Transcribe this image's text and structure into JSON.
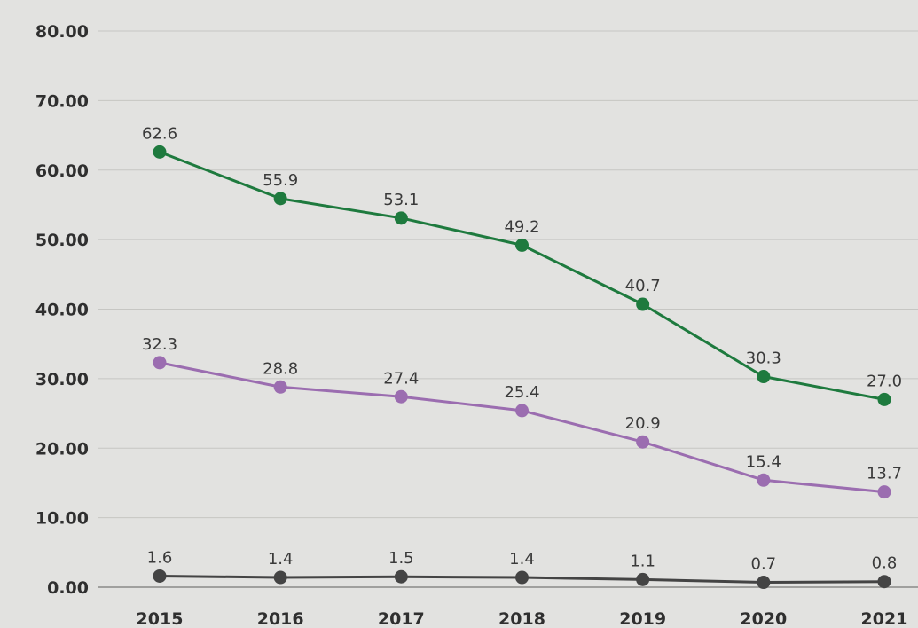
{
  "chart_data": {
    "type": "line",
    "title": "",
    "xlabel": "",
    "ylabel": "",
    "categories": [
      "2015",
      "2016",
      "2017",
      "2018",
      "2019",
      "2020",
      "2021"
    ],
    "ylim": [
      0,
      80
    ],
    "yticks": [
      "0.00",
      "10.00",
      "20.00",
      "30.00",
      "40.00",
      "50.00",
      "60.00",
      "70.00",
      "80.00"
    ],
    "grid": true,
    "legend": "none",
    "series": [
      {
        "color": "#1e7a3e",
        "values": [
          62.6,
          55.9,
          53.1,
          49.2,
          40.7,
          30.3,
          27.0
        ],
        "labels": [
          "62.6",
          "55.9",
          "53.1",
          "49.2",
          "40.7",
          "30.3",
          "27.0"
        ]
      },
      {
        "color": "#9b6db0",
        "values": [
          32.3,
          28.8,
          27.4,
          25.4,
          20.9,
          15.4,
          13.7
        ],
        "labels": [
          "32.3",
          "28.8",
          "27.4",
          "25.4",
          "20.9",
          "15.4",
          "13.7"
        ]
      },
      {
        "color": "#444444",
        "values": [
          1.6,
          1.4,
          1.5,
          1.4,
          1.1,
          0.7,
          0.8
        ],
        "labels": [
          "1.6",
          "1.4",
          "1.5",
          "1.4",
          "1.1",
          "0.7",
          "0.8"
        ]
      }
    ]
  }
}
